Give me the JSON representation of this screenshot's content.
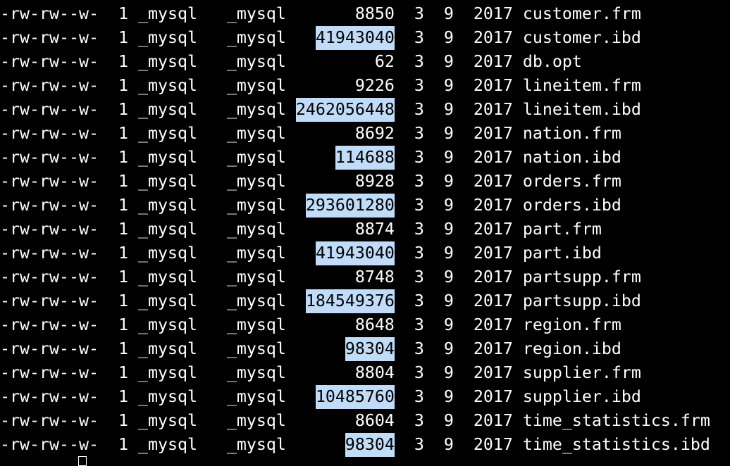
{
  "terminal": {
    "highlight_color": "#c0dcf8",
    "rows": [
      {
        "perms": "-rw-rw--w-",
        "links": "1",
        "owner": "_mysql",
        "group": "_mysql",
        "size": "8850",
        "month": "3",
        "day": "9",
        "year": "2017",
        "name": "customer.frm",
        "highlighted": false
      },
      {
        "perms": "-rw-rw--w-",
        "links": "1",
        "owner": "_mysql",
        "group": "_mysql",
        "size": "41943040",
        "month": "3",
        "day": "9",
        "year": "2017",
        "name": "customer.ibd",
        "highlighted": true
      },
      {
        "perms": "-rw-rw--w-",
        "links": "1",
        "owner": "_mysql",
        "group": "_mysql",
        "size": "62",
        "month": "3",
        "day": "9",
        "year": "2017",
        "name": "db.opt",
        "highlighted": false
      },
      {
        "perms": "-rw-rw--w-",
        "links": "1",
        "owner": "_mysql",
        "group": "_mysql",
        "size": "9226",
        "month": "3",
        "day": "9",
        "year": "2017",
        "name": "lineitem.frm",
        "highlighted": false
      },
      {
        "perms": "-rw-rw--w-",
        "links": "1",
        "owner": "_mysql",
        "group": "_mysql",
        "size": "2462056448",
        "month": "3",
        "day": "9",
        "year": "2017",
        "name": "lineitem.ibd",
        "highlighted": true
      },
      {
        "perms": "-rw-rw--w-",
        "links": "1",
        "owner": "_mysql",
        "group": "_mysql",
        "size": "8692",
        "month": "3",
        "day": "9",
        "year": "2017",
        "name": "nation.frm",
        "highlighted": false
      },
      {
        "perms": "-rw-rw--w-",
        "links": "1",
        "owner": "_mysql",
        "group": "_mysql",
        "size": "114688",
        "month": "3",
        "day": "9",
        "year": "2017",
        "name": "nation.ibd",
        "highlighted": true
      },
      {
        "perms": "-rw-rw--w-",
        "links": "1",
        "owner": "_mysql",
        "group": "_mysql",
        "size": "8928",
        "month": "3",
        "day": "9",
        "year": "2017",
        "name": "orders.frm",
        "highlighted": false
      },
      {
        "perms": "-rw-rw--w-",
        "links": "1",
        "owner": "_mysql",
        "group": "_mysql",
        "size": "293601280",
        "month": "3",
        "day": "9",
        "year": "2017",
        "name": "orders.ibd",
        "highlighted": true
      },
      {
        "perms": "-rw-rw--w-",
        "links": "1",
        "owner": "_mysql",
        "group": "_mysql",
        "size": "8874",
        "month": "3",
        "day": "9",
        "year": "2017",
        "name": "part.frm",
        "highlighted": false
      },
      {
        "perms": "-rw-rw--w-",
        "links": "1",
        "owner": "_mysql",
        "group": "_mysql",
        "size": "41943040",
        "month": "3",
        "day": "9",
        "year": "2017",
        "name": "part.ibd",
        "highlighted": true
      },
      {
        "perms": "-rw-rw--w-",
        "links": "1",
        "owner": "_mysql",
        "group": "_mysql",
        "size": "8748",
        "month": "3",
        "day": "9",
        "year": "2017",
        "name": "partsupp.frm",
        "highlighted": false
      },
      {
        "perms": "-rw-rw--w-",
        "links": "1",
        "owner": "_mysql",
        "group": "_mysql",
        "size": "184549376",
        "month": "3",
        "day": "9",
        "year": "2017",
        "name": "partsupp.ibd",
        "highlighted": true
      },
      {
        "perms": "-rw-rw--w-",
        "links": "1",
        "owner": "_mysql",
        "group": "_mysql",
        "size": "8648",
        "month": "3",
        "day": "9",
        "year": "2017",
        "name": "region.frm",
        "highlighted": false
      },
      {
        "perms": "-rw-rw--w-",
        "links": "1",
        "owner": "_mysql",
        "group": "_mysql",
        "size": "98304",
        "month": "3",
        "day": "9",
        "year": "2017",
        "name": "region.ibd",
        "highlighted": true
      },
      {
        "perms": "-rw-rw--w-",
        "links": "1",
        "owner": "_mysql",
        "group": "_mysql",
        "size": "8804",
        "month": "3",
        "day": "9",
        "year": "2017",
        "name": "supplier.frm",
        "highlighted": false
      },
      {
        "perms": "-rw-rw--w-",
        "links": "1",
        "owner": "_mysql",
        "group": "_mysql",
        "size": "10485760",
        "month": "3",
        "day": "9",
        "year": "2017",
        "name": "supplier.ibd",
        "highlighted": true
      },
      {
        "perms": "-rw-rw--w-",
        "links": "1",
        "owner": "_mysql",
        "group": "_mysql",
        "size": "8604",
        "month": "3",
        "day": "9",
        "year": "2017",
        "name": "time_statistics.frm",
        "highlighted": false
      },
      {
        "perms": "-rw-rw--w-",
        "links": "1",
        "owner": "_mysql",
        "group": "_mysql",
        "size": "98304",
        "month": "3",
        "day": "9",
        "year": "2017",
        "name": "time_statistics.ibd",
        "highlighted": true
      }
    ]
  }
}
